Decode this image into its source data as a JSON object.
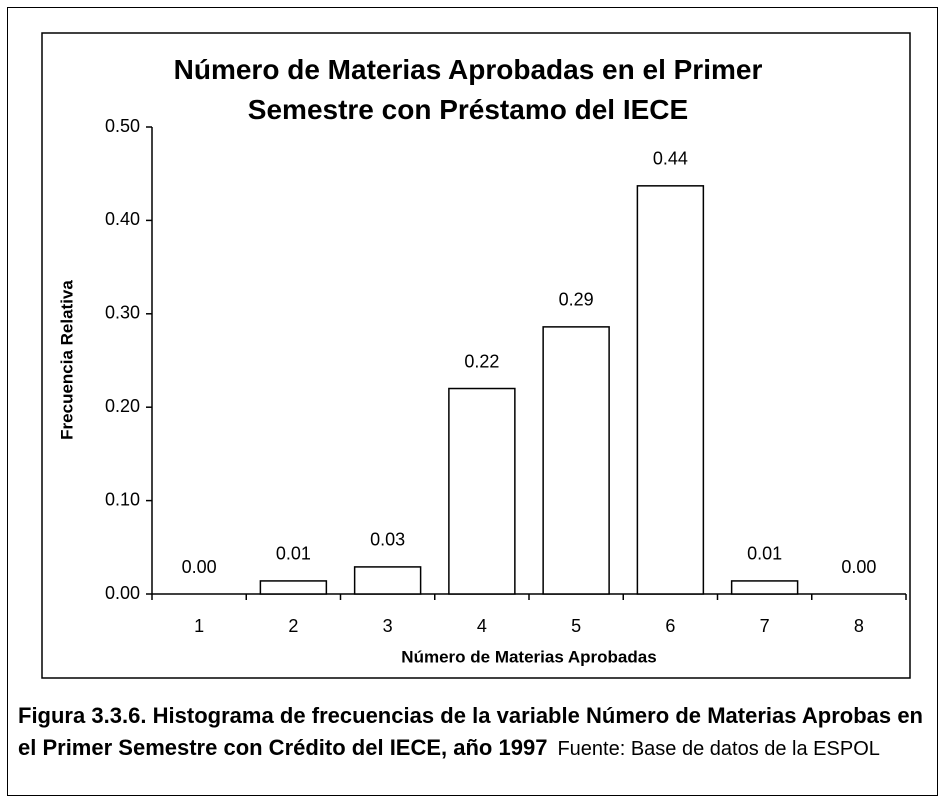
{
  "chart_data": {
    "type": "bar",
    "title": "Número de Materias Aprobadas en el Primer Semestre con Préstamo del IECE",
    "x_label": "Número de Materias Aprobadas",
    "y_label": "Frecuencia Relativa",
    "categories": [
      "1",
      "2",
      "3",
      "4",
      "5",
      "6",
      "7",
      "8"
    ],
    "values": [
      0,
      0.014,
      0.029,
      0.22,
      0.286,
      0.437,
      0.014,
      0
    ],
    "value_labels": [
      "0.00",
      "0.01",
      "0.03",
      "0.22",
      "0.29",
      "0.44",
      "0.01",
      "0.00"
    ],
    "color": "#ffffff",
    "ylim": [
      0,
      0.5
    ],
    "yticks": [
      {
        "value": 0,
        "label": "0.00"
      },
      {
        "value": 0.1,
        "label": "0.10"
      },
      {
        "value": 0.2,
        "label": "0.20"
      },
      {
        "value": 0.3,
        "label": "0.30"
      },
      {
        "value": 0.4,
        "label": "0.40"
      },
      {
        "value": 0.5,
        "label": "0.50"
      }
    ],
    "caption": "Figura 3.3.6. Histograma de frecuencias de la variable Número de Materias Aprobas en el Primer Semestre con Crédito del IECE, año 1997",
    "source": "Fuente: Base de datos de la ESPOL"
  }
}
